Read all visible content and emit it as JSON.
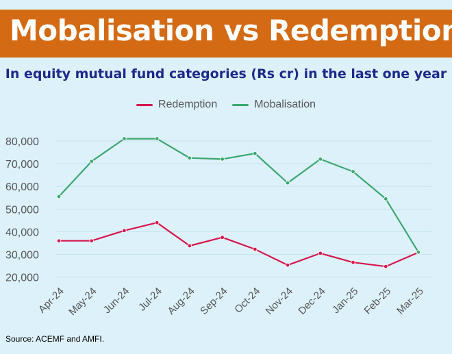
{
  "header": {
    "title": "Mobalisation vs Redemption",
    "subtitle": "In equity mutual fund categories (Rs cr) in the last one year"
  },
  "footer": {
    "source": "Source: ACEMF and AMFI."
  },
  "colors": {
    "banner": "#d46a14",
    "redemption": "#d7154a",
    "mobalisation": "#3aa76d",
    "background": "#ddf1fa"
  },
  "chart_data": {
    "type": "line",
    "title": "Mobalisation vs Redemption",
    "subtitle": "In equity mutual fund categories (Rs cr) in the last one year",
    "xlabel": "",
    "ylabel": "",
    "categories": [
      "Apr-24",
      "May-24",
      "Jun-24",
      "Jul-24",
      "Aug-24",
      "Sep-24",
      "Oct-24",
      "Nov-24",
      "Dec-24",
      "Jan-25",
      "Feb-25",
      "Mar-25"
    ],
    "series": [
      {
        "name": "Redemption",
        "color": "#d7154a",
        "values": [
          36000,
          36000,
          40500,
          44000,
          33800,
          37500,
          32300,
          25300,
          30500,
          26500,
          24700,
          30900
        ]
      },
      {
        "name": "Mobalisation",
        "color": "#3aa76d",
        "values": [
          55500,
          71000,
          81000,
          81000,
          72500,
          72000,
          74500,
          61500,
          72000,
          66500,
          54500,
          31000
        ]
      }
    ],
    "yticks": [
      20000,
      30000,
      40000,
      50000,
      60000,
      70000,
      80000
    ],
    "ylim": [
      16000,
      86000
    ],
    "grid": true,
    "legend": "top-center"
  }
}
